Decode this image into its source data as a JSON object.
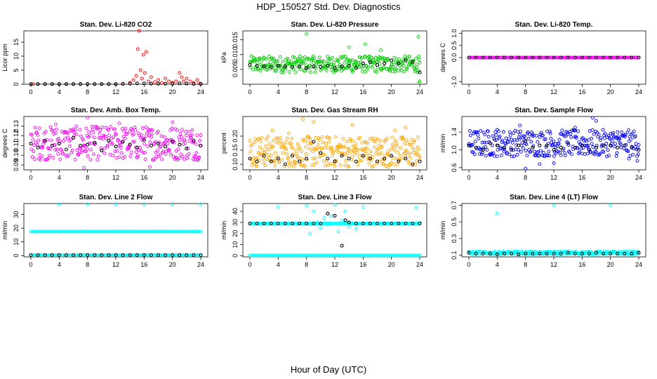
{
  "page": {
    "title": "HDP_150527  Std. Dev. Diagnostics",
    "x_axis_title": "Hour of Day (UTC)"
  },
  "colors": {
    "red": "#ff0000",
    "green": "#00cc00",
    "magenta": "#ff00ff",
    "orange": "#ffa500",
    "blue": "#0000ff",
    "cyan": "#00ffff",
    "black": "#000000"
  },
  "chart_data": [
    {
      "type": "scatter",
      "title": "Stan. Dev. Li-820 CO2",
      "ylabel": "Licor ppm",
      "xlim": [
        0,
        24
      ],
      "ylim": [
        0,
        19
      ],
      "xticks": [
        "0",
        "4",
        "8",
        "12",
        "16",
        "20",
        "24"
      ],
      "yticks": [
        "0",
        "5",
        "10",
        "15"
      ],
      "series": [
        {
          "name": "all",
          "color": "red",
          "symbol": "circle",
          "x": [
            0.3,
            1,
            2,
            3,
            4,
            5,
            6,
            7,
            8,
            9,
            10,
            11,
            12,
            13,
            14,
            14.5,
            14.9,
            15.1,
            15.3,
            15.5,
            15.7,
            15.9,
            16.1,
            16.3,
            16.6,
            17,
            17.5,
            18,
            18.5,
            19,
            19.5,
            20,
            20.5,
            21,
            21.3,
            21.6,
            22,
            22.5,
            23,
            23.5,
            23.8
          ],
          "y": [
            0.1,
            0.1,
            0.1,
            0.1,
            0.1,
            0.1,
            0.1,
            0.1,
            0.1,
            0.1,
            0.1,
            0.1,
            0.1,
            0.2,
            0.5,
            1.5,
            3.0,
            12.5,
            19.0,
            5.0,
            2.0,
            10.5,
            4.0,
            11.5,
            1.0,
            2.5,
            0.8,
            1.5,
            0.5,
            2.0,
            1.0,
            0.5,
            1.0,
            4.0,
            2.5,
            1.0,
            2.0,
            1.0,
            0.5,
            1.5,
            0.3
          ]
        },
        {
          "name": "hourly",
          "color": "black",
          "symbol": "circle",
          "x": [
            0,
            1,
            2,
            3,
            4,
            5,
            6,
            7,
            8,
            9,
            10,
            11,
            12,
            13,
            14,
            15,
            16,
            17,
            18,
            19,
            20,
            21,
            22,
            23,
            24
          ],
          "y": [
            0.05,
            0.05,
            0.05,
            0.05,
            0.05,
            0.05,
            0.05,
            0.05,
            0.05,
            0.05,
            0.05,
            0.05,
            0.05,
            0.1,
            0.2,
            0.3,
            0.3,
            0.2,
            0.2,
            0.2,
            0.2,
            0.3,
            0.2,
            0.1,
            0.1
          ]
        }
      ]
    },
    {
      "type": "scatter",
      "title": "Stan. Dev. Li-820 Pressure",
      "ylabel": "kPa",
      "xlim": [
        0,
        24
      ],
      "ylim": [
        0,
        0.018
      ],
      "xticks": [
        "0",
        "4",
        "8",
        "12",
        "16",
        "20",
        "24"
      ],
      "yticks": [
        "0.005",
        "0.010",
        "0.015"
      ],
      "yvals": [
        0.005,
        0.01,
        0.015
      ],
      "series": [
        {
          "name": "all",
          "color": "green",
          "symbol": "circle",
          "dense": true,
          "band": [
            0.004,
            0.0095
          ],
          "x": [
            8,
            14,
            16,
            16.3,
            18.5,
            23.8,
            23.9,
            24
          ],
          "y": [
            0.017,
            0.0125,
            0.0185,
            0.0135,
            0.0115,
            0.016,
            0.0005,
            0.001
          ]
        },
        {
          "name": "hourly",
          "color": "black",
          "symbol": "circle",
          "x": [
            0,
            1,
            2,
            3,
            4,
            5,
            6,
            7,
            8,
            9,
            10,
            11,
            12,
            13,
            14,
            15,
            16,
            17,
            18,
            19,
            20,
            21,
            22,
            23,
            24
          ],
          "y": [
            0.0065,
            0.0062,
            0.006,
            0.0058,
            0.0062,
            0.006,
            0.0058,
            0.006,
            0.0055,
            0.006,
            0.0058,
            0.0062,
            0.0055,
            0.006,
            0.0062,
            0.0055,
            0.007,
            0.0075,
            0.0065,
            0.007,
            0.008,
            0.007,
            0.008,
            0.0075,
            0.004
          ]
        }
      ]
    },
    {
      "type": "scatter",
      "title": "Stan. Dev. Li-820 Temp.",
      "ylabel": "degrees C",
      "xlim": [
        0,
        24
      ],
      "ylim": [
        -1.1,
        1.1
      ],
      "xticks": [
        "0",
        "4",
        "8",
        "12",
        "16",
        "20",
        "24"
      ],
      "yticks": [
        "-1.0",
        "0.0",
        "0.5",
        "1.0"
      ],
      "yvals": [
        -1.0,
        0.0,
        0.5,
        1.0
      ],
      "series": [
        {
          "name": "all",
          "color": "magenta",
          "symbol": "circle",
          "dense": true,
          "band": [
            0,
            0
          ],
          "x": [],
          "y": []
        },
        {
          "name": "hourly",
          "color": "black",
          "symbol": "circle",
          "x": [
            0,
            1,
            2,
            3,
            4,
            5,
            6,
            7,
            8,
            9,
            10,
            11,
            12,
            13,
            14,
            15,
            16,
            17,
            18,
            19,
            20,
            21,
            22,
            23,
            24
          ],
          "y": [
            0,
            0,
            0,
            0,
            0,
            0,
            0,
            0,
            0,
            0,
            0,
            0,
            0,
            0,
            0,
            0,
            0,
            0,
            0,
            0,
            0,
            0,
            0,
            0,
            0
          ]
        }
      ]
    },
    {
      "type": "scatter",
      "title": "Stan. Dev. Amb. Box Temp.",
      "ylabel": "degrees C",
      "xlim": [
        0,
        24
      ],
      "ylim": [
        0.085,
        0.14
      ],
      "xticks": [
        "0",
        "4",
        "8",
        "12",
        "16",
        "20",
        "24"
      ],
      "yticks": [
        "0.09",
        "0.10",
        "0.11",
        "0.12",
        "0.13"
      ],
      "yvals": [
        0.09,
        0.1,
        0.11,
        0.12,
        0.13
      ],
      "series": [
        {
          "name": "all",
          "color": "magenta",
          "symbol": "circle",
          "dense": true,
          "band": [
            0.095,
            0.13
          ],
          "x": [
            8,
            3.5,
            20,
            12.5,
            7.5,
            16.8
          ],
          "y": [
            0.139,
            0.132,
            0.134,
            0.133,
            0.087,
            0.088
          ]
        },
        {
          "name": "hourly",
          "color": "black",
          "symbol": "circle",
          "x": [
            0,
            1,
            2,
            3,
            4,
            5,
            6,
            7,
            8,
            9,
            10,
            11,
            12,
            13,
            14,
            15,
            16,
            17,
            18,
            19,
            20,
            21,
            22,
            23,
            24
          ],
          "y": [
            0.112,
            0.108,
            0.115,
            0.11,
            0.112,
            0.106,
            0.118,
            0.11,
            0.111,
            0.113,
            0.105,
            0.115,
            0.109,
            0.114,
            0.111,
            0.108,
            0.116,
            0.11,
            0.112,
            0.109,
            0.114,
            0.111,
            0.107,
            0.115,
            0.11
          ]
        }
      ]
    },
    {
      "type": "scatter",
      "title": "Stan. Dev. Gas Stream RH",
      "ylabel": "percent",
      "xlim": [
        0,
        24
      ],
      "ylim": [
        0.08,
        0.27
      ],
      "xticks": [
        "0",
        "4",
        "8",
        "12",
        "16",
        "20",
        "24"
      ],
      "yticks": [
        "0.10",
        "0.15",
        "0.20"
      ],
      "yvals": [
        0.1,
        0.15,
        0.2
      ],
      "series": [
        {
          "name": "all",
          "color": "orange",
          "symbol": "circle",
          "dense": true,
          "band": [
            0.09,
            0.2
          ],
          "x": [
            7.5,
            9,
            3.2,
            5.5,
            14.5,
            20.5,
            22,
            1.2
          ],
          "y": [
            0.26,
            0.25,
            0.22,
            0.21,
            0.24,
            0.22,
            0.23,
            0.19
          ]
        },
        {
          "name": "hourly",
          "color": "black",
          "symbol": "circle",
          "x": [
            0,
            1,
            2,
            3,
            4,
            5,
            6,
            7,
            8,
            9,
            10,
            11,
            12,
            13,
            14,
            15,
            16,
            17,
            18,
            19,
            20,
            21,
            22,
            23,
            24
          ],
          "y": [
            0.12,
            0.11,
            0.13,
            0.11,
            0.12,
            0.1,
            0.13,
            0.11,
            0.12,
            0.18,
            0.14,
            0.12,
            0.11,
            0.13,
            0.12,
            0.11,
            0.13,
            0.12,
            0.11,
            0.12,
            0.13,
            0.11,
            0.12,
            0.1,
            0.11
          ]
        }
      ]
    },
    {
      "type": "scatter",
      "title": "Stan. Dev. Sample Flow",
      "ylabel": "ml/min",
      "xlim": [
        0,
        24
      ],
      "ylim": [
        0.55,
        1.75
      ],
      "xticks": [
        "0",
        "4",
        "8",
        "12",
        "16",
        "20",
        "24"
      ],
      "yticks": [
        "0.6",
        "1.0",
        "1.4"
      ],
      "yvals": [
        0.6,
        1.0,
        1.4
      ],
      "series": [
        {
          "name": "all",
          "color": "blue",
          "symbol": "circle",
          "dense": true,
          "band": [
            0.85,
            1.45
          ],
          "x": [
            7.2,
            17.5,
            23.8,
            8,
            10,
            4,
            12,
            15,
            18,
            21,
            22.6
          ],
          "y": [
            1.55,
            1.72,
            0.75,
            0.58,
            0.68,
            1.45,
            0.7,
            1.5,
            1.65,
            1.4,
            0.8
          ]
        },
        {
          "name": "hourly",
          "color": "black",
          "symbol": "circle",
          "x": [
            0,
            1,
            2,
            3,
            4,
            5,
            6,
            7,
            8,
            9,
            10,
            11,
            12,
            13,
            14,
            15,
            16,
            17,
            18,
            19,
            20,
            21,
            22,
            23,
            24
          ],
          "y": [
            1.1,
            1.05,
            1.0,
            1.15,
            1.1,
            1.05,
            1.0,
            1.1,
            1.2,
            1.05,
            1.1,
            1.1,
            1.0,
            1.05,
            1.15,
            1.05,
            1.1,
            1.0,
            1.05,
            1.1,
            1.1,
            1.05,
            1.1,
            1.05,
            1.0
          ]
        }
      ]
    },
    {
      "type": "scatter",
      "title": "Stan. Dev. Line 2 Flow",
      "ylabel": "ml/min",
      "xlim": [
        0,
        24
      ],
      "ylim": [
        -1,
        38
      ],
      "xticks": [
        "0",
        "4",
        "8",
        "12",
        "16",
        "20",
        "24"
      ],
      "yticks": [
        "0",
        "10",
        "20",
        "30"
      ],
      "series": [
        {
          "name": "all",
          "color": "cyan",
          "symbol": "circle",
          "dense": true,
          "band": [
            17.5,
            17.5
          ],
          "x": [
            4,
            8,
            12,
            16,
            20,
            24
          ],
          "y": [
            37.5,
            37.5,
            37.5,
            37.5,
            37.5,
            37.5
          ]
        },
        {
          "name": "all-low",
          "color": "cyan",
          "symbol": "circle",
          "dense": true,
          "band": [
            0.3,
            0.3
          ],
          "x": [],
          "y": []
        },
        {
          "name": "hourly",
          "color": "black",
          "symbol": "circle",
          "x": [
            0,
            1,
            2,
            3,
            4,
            5,
            6,
            7,
            8,
            9,
            10,
            11,
            12,
            13,
            14,
            15,
            16,
            17,
            18,
            19,
            20,
            21,
            22,
            23,
            24
          ],
          "y": [
            0.3,
            0.3,
            0.3,
            0.3,
            0.3,
            0.3,
            0.3,
            0.3,
            0.3,
            0.3,
            0.3,
            0.3,
            0.3,
            0.3,
            0.3,
            0.3,
            0.3,
            0.3,
            0.3,
            0.3,
            0.3,
            0.3,
            0.3,
            0.3,
            0.3
          ]
        }
      ]
    },
    {
      "type": "scatter",
      "title": "Stan. Dev. Line 3 Flow",
      "ylabel": "ml/min",
      "xlim": [
        0,
        24
      ],
      "ylim": [
        -1,
        47
      ],
      "xticks": [
        "0",
        "4",
        "8",
        "12",
        "16",
        "20",
        "24"
      ],
      "yticks": [
        "0",
        "10",
        "20",
        "30",
        "40"
      ],
      "series": [
        {
          "name": "all",
          "color": "cyan",
          "symbol": "circle",
          "dense": true,
          "band": [
            0.3,
            0.3
          ],
          "x": [
            4,
            8,
            9.5,
            10,
            10.5,
            11,
            11.5,
            12,
            12.5,
            13,
            13.5,
            14,
            16,
            23.5,
            24,
            8.5,
            9,
            15
          ],
          "y": [
            44,
            45,
            30,
            25,
            34,
            28,
            36,
            46,
            22,
            32,
            40,
            26,
            44,
            43,
            30,
            20,
            40,
            24
          ]
        },
        {
          "name": "all-mid",
          "color": "cyan",
          "symbol": "circle",
          "dense": true,
          "band": [
            29,
            29
          ],
          "x": [],
          "y": []
        },
        {
          "name": "hourly",
          "color": "black",
          "symbol": "circle",
          "x": [
            0,
            1,
            2,
            3,
            4,
            5,
            6,
            7,
            8,
            9,
            10,
            11,
            12,
            13,
            13.5,
            14,
            15,
            16,
            17,
            18,
            19,
            20,
            21,
            22,
            23,
            24
          ],
          "y": [
            29,
            29,
            29,
            29,
            29,
            29,
            29,
            29,
            29,
            29,
            29,
            38,
            36,
            9,
            32,
            30,
            29,
            29,
            29,
            29,
            29,
            29,
            29,
            29,
            29,
            29
          ]
        }
      ]
    },
    {
      "type": "scatter",
      "title": "Stan. Dev. Line 4 (LT) Flow",
      "ylabel": "ml/min",
      "xlim": [
        0,
        24
      ],
      "ylim": [
        0.08,
        0.72
      ],
      "xticks": [
        "0",
        "4",
        "8",
        "12",
        "16",
        "20",
        "24"
      ],
      "yticks": [
        "0.1",
        "0.3",
        "0.5",
        "0.7"
      ],
      "yvals": [
        0.1,
        0.3,
        0.5,
        0.7
      ],
      "series": [
        {
          "name": "all",
          "color": "cyan",
          "symbol": "circle",
          "dense": true,
          "band": [
            0.11,
            0.145
          ],
          "x": [
            4,
            12,
            20
          ],
          "y": [
            0.6,
            0.7,
            0.7
          ]
        },
        {
          "name": "hourly",
          "color": "black",
          "symbol": "circle",
          "x": [
            0,
            1,
            2,
            3,
            4,
            5,
            6,
            7,
            8,
            9,
            10,
            11,
            12,
            13,
            14,
            15,
            16,
            17,
            18,
            19,
            20,
            21,
            22,
            23,
            24
          ],
          "y": [
            0.13,
            0.12,
            0.12,
            0.12,
            0.11,
            0.12,
            0.12,
            0.11,
            0.12,
            0.12,
            0.12,
            0.12,
            0.12,
            0.12,
            0.13,
            0.12,
            0.12,
            0.12,
            0.13,
            0.12,
            0.12,
            0.12,
            0.12,
            0.12,
            0.13
          ]
        }
      ]
    }
  ]
}
